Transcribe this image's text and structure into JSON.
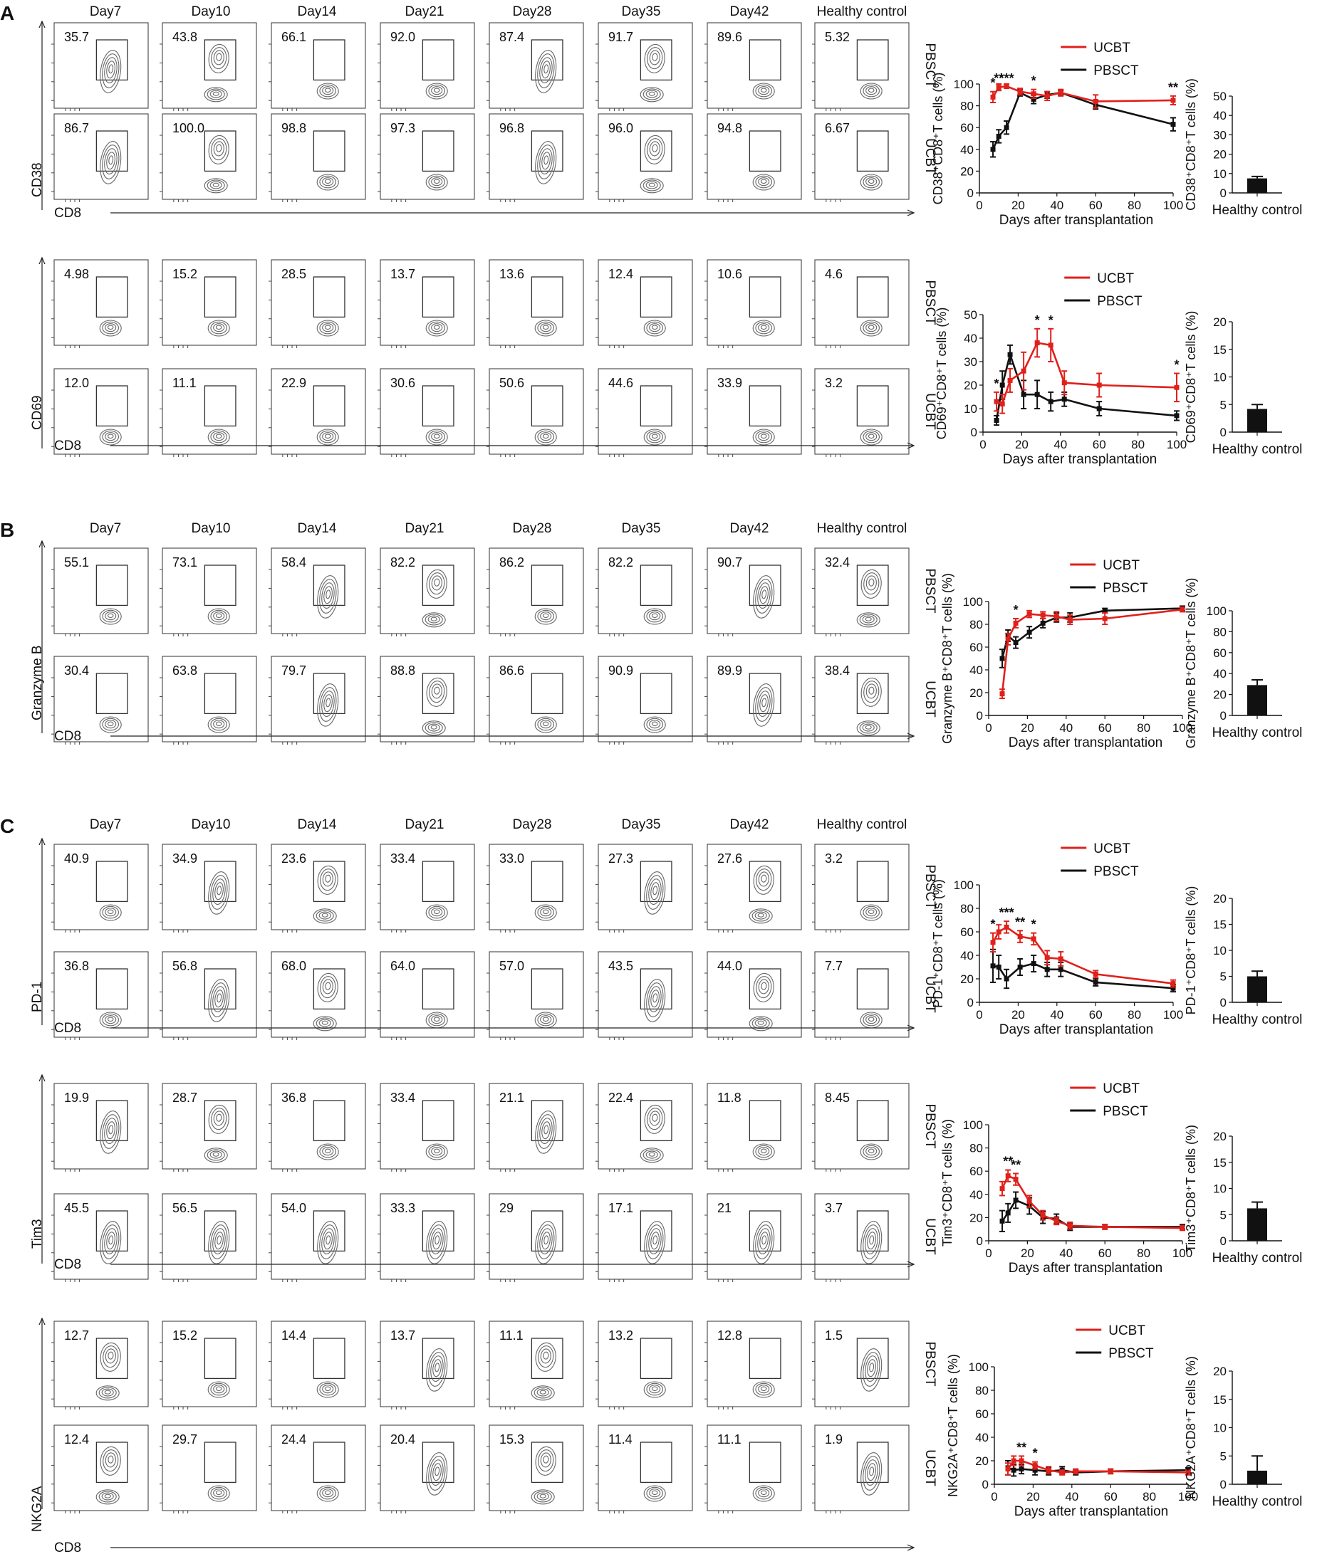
{
  "figure": {
    "panel_letters": [
      "A",
      "B",
      "C"
    ],
    "day_labels": [
      "Day7",
      "Day10",
      "Day14",
      "Day21",
      "Day28",
      "Day35",
      "Day42",
      "Healthy control"
    ],
    "group_labels": {
      "pbsct": "PBSCT",
      "ucbt": "UCBT"
    },
    "x_marker": "CD8",
    "legend": {
      "ucbt": "UCBT",
      "pbsct": "PBSCT"
    },
    "line_xlabel": "Days after transplantation",
    "bar_xlabel": "Healthy control",
    "colors": {
      "ucbt": "#e0201b",
      "pbsct": "#111111",
      "contour": "#666666",
      "bar": "#111111"
    },
    "panels": [
      {
        "letter": "A",
        "show_day_headers": true,
        "markers": [
          {
            "marker": "CD38",
            "pbsct_values": [
              "35.7",
              "43.8",
              "66.1",
              "92.0",
              "87.4",
              "91.7",
              "89.6",
              "5.32"
            ],
            "ucbt_values": [
              "86.7",
              "100.0",
              "98.8",
              "97.3",
              "96.8",
              "96.0",
              "94.8",
              "6.67"
            ],
            "line_ylabel": "CD38⁺CD8⁺T cells (%)",
            "bar_ylabel": "CD38⁺CD8⁺T cells (%)"
          },
          {
            "marker": "CD69",
            "pbsct_values": [
              "4.98",
              "15.2",
              "28.5",
              "13.7",
              "13.6",
              "12.4",
              "10.6",
              "4.6"
            ],
            "ucbt_values": [
              "12.0",
              "11.1",
              "22.9",
              "30.6",
              "50.6",
              "44.6",
              "33.9",
              "3.2"
            ],
            "line_ylabel": "CD69⁺CD8⁺T cells (%)",
            "bar_ylabel": "CD69⁺CD8⁺T cells (%)"
          }
        ]
      },
      {
        "letter": "B",
        "show_day_headers": true,
        "markers": [
          {
            "marker": "Granzyme B",
            "pbsct_values": [
              "55.1",
              "73.1",
              "58.4",
              "82.2",
              "86.2",
              "82.2",
              "90.7",
              "32.4"
            ],
            "ucbt_values": [
              "30.4",
              "63.8",
              "79.7",
              "88.8",
              "86.6",
              "90.9",
              "89.9",
              "38.4"
            ],
            "line_ylabel": "Granzyme B⁺CD8⁺T cells (%)",
            "bar_ylabel": "Granzyme B⁺CD8⁺T cells (%)"
          }
        ]
      },
      {
        "letter": "C",
        "show_day_headers": true,
        "markers": [
          {
            "marker": "PD-1",
            "pbsct_values": [
              "40.9",
              "34.9",
              "23.6",
              "33.4",
              "33.0",
              "27.3",
              "27.6",
              "3.2"
            ],
            "ucbt_values": [
              "36.8",
              "56.8",
              "68.0",
              "64.0",
              "57.0",
              "43.5",
              "44.0",
              "7.7"
            ],
            "line_ylabel": "PD-1⁺CD8⁺T cells (%)",
            "bar_ylabel": "PD-1⁺CD8⁺T cells (%)"
          },
          {
            "marker": "Tim3",
            "pbsct_values": [
              "19.9",
              "28.7",
              "36.8",
              "33.4",
              "21.1",
              "22.4",
              "11.8",
              "8.45"
            ],
            "ucbt_values": [
              "45.5",
              "56.5",
              "54.0",
              "33.3",
              "29",
              "17.1",
              "21",
              "3.7"
            ],
            "line_ylabel": "Tim3⁺CD8⁺T cells (%)",
            "bar_ylabel": "Tim3⁺CD8⁺T cells (%)"
          },
          {
            "marker": "NKG2A",
            "pbsct_values": [
              "12.7",
              "15.2",
              "14.4",
              "13.7",
              "11.1",
              "13.2",
              "12.8",
              "1.5"
            ],
            "ucbt_values": [
              "12.4",
              "29.7",
              "24.4",
              "20.4",
              "15.3",
              "11.4",
              "11.1",
              "1.9"
            ],
            "line_ylabel": "NKG2A⁺CD8⁺T cells (%)",
            "bar_ylabel": "NKG2A⁺CD8⁺T cells (%)"
          }
        ]
      }
    ]
  },
  "chart_data": [
    {
      "type": "line",
      "xlabel": "Days after transplantation",
      "ylabel": "CD38⁺CD8⁺T cells (%)",
      "xlim": [
        0,
        100
      ],
      "ylim": [
        0,
        100
      ],
      "xticks": [
        0,
        20,
        40,
        60,
        80,
        100
      ],
      "yticks": [
        0,
        20,
        40,
        60,
        80,
        100
      ],
      "x": [
        7,
        10,
        14,
        21,
        28,
        35,
        42,
        60,
        100
      ],
      "series": [
        {
          "name": "UCBT",
          "color": "#e0201b",
          "values": [
            88,
            97,
            98,
            93,
            91,
            89,
            92,
            84,
            85
          ],
          "errors": [
            5,
            3,
            2,
            3,
            4,
            4,
            3,
            6,
            4
          ]
        },
        {
          "name": "PBSCT",
          "color": "#111111",
          "values": [
            40,
            52,
            60,
            92,
            86,
            90,
            92,
            81,
            63
          ],
          "errors": [
            7,
            6,
            6,
            3,
            4,
            3,
            2,
            4,
            6
          ]
        }
      ],
      "significance": [
        {
          "x": 7,
          "label": "*"
        },
        {
          "x": 10,
          "label": "**"
        },
        {
          "x": 14,
          "label": "***"
        },
        {
          "x": 28,
          "label": "*"
        },
        {
          "x": 100,
          "label": "**"
        }
      ],
      "legend": "top-right"
    },
    {
      "type": "bar",
      "xlabel": "Healthy control",
      "ylabel": "CD38⁺CD8⁺T cells (%)",
      "ylim": [
        0,
        50
      ],
      "yticks": [
        0,
        10,
        20,
        30,
        40,
        50
      ],
      "categories": [
        "Healthy control"
      ],
      "values": [
        7.5
      ],
      "errors": [
        1
      ]
    },
    {
      "type": "line",
      "xlabel": "Days after transplantation",
      "ylabel": "CD69⁺CD8⁺T cells (%)",
      "xlim": [
        0,
        100
      ],
      "ylim": [
        0,
        50
      ],
      "xticks": [
        0,
        20,
        40,
        60,
        80,
        100
      ],
      "yticks": [
        0,
        10,
        20,
        30,
        40,
        50
      ],
      "x": [
        7,
        10,
        14,
        21,
        28,
        35,
        42,
        60,
        100
      ],
      "series": [
        {
          "name": "UCBT",
          "color": "#e0201b",
          "values": [
            13,
            12,
            22,
            26,
            38,
            37,
            21,
            20,
            19
          ],
          "errors": [
            4,
            4,
            5,
            8,
            6,
            7,
            5,
            5,
            6
          ]
        },
        {
          "name": "PBSCT",
          "color": "#111111",
          "values": [
            5,
            20,
            33,
            16,
            16,
            13,
            14,
            10,
            7
          ],
          "errors": [
            2,
            6,
            4,
            6,
            6,
            4,
            3,
            3,
            2
          ]
        }
      ],
      "significance": [
        {
          "x": 7,
          "label": "*"
        },
        {
          "x": 28,
          "label": "*"
        },
        {
          "x": 35,
          "label": "*"
        },
        {
          "x": 100,
          "label": "*"
        }
      ],
      "legend": "top-right"
    },
    {
      "type": "bar",
      "xlabel": "Healthy control",
      "ylabel": "CD69⁺CD8⁺T cells (%)",
      "ylim": [
        0,
        20
      ],
      "yticks": [
        0,
        5,
        10,
        15,
        20
      ],
      "categories": [
        "Healthy control"
      ],
      "values": [
        4.2
      ],
      "errors": [
        0.8
      ]
    },
    {
      "type": "line",
      "xlabel": "Days after transplantation",
      "ylabel": "Granzyme B⁺CD8⁺T cells (%)",
      "xlim": [
        0,
        100
      ],
      "ylim": [
        0,
        100
      ],
      "xticks": [
        0,
        20,
        40,
        60,
        80,
        100
      ],
      "yticks": [
        0,
        20,
        40,
        60,
        80,
        100
      ],
      "x": [
        7,
        10,
        14,
        21,
        28,
        35,
        42,
        60,
        100
      ],
      "series": [
        {
          "name": "UCBT",
          "color": "#e0201b",
          "values": [
            19,
            67,
            81,
            89,
            88,
            87,
            84,
            85,
            93
          ],
          "errors": [
            4,
            5,
            4,
            3,
            3,
            4,
            4,
            5,
            2
          ]
        },
        {
          "name": "PBSCT",
          "color": "#111111",
          "values": [
            50,
            70,
            64,
            73,
            81,
            86,
            86,
            92,
            94
          ],
          "errors": [
            8,
            5,
            5,
            5,
            4,
            4,
            4,
            2,
            2
          ]
        }
      ],
      "significance": [
        {
          "x": 14,
          "label": "*"
        }
      ],
      "legend": "top-right"
    },
    {
      "type": "bar",
      "xlabel": "Healthy control",
      "ylabel": "Granzyme B⁺CD8⁺T cells (%)",
      "ylim": [
        0,
        100
      ],
      "yticks": [
        0,
        20,
        40,
        60,
        80,
        100
      ],
      "categories": [
        "Healthy control"
      ],
      "values": [
        29
      ],
      "errors": [
        5
      ]
    },
    {
      "type": "line",
      "xlabel": "Days after transplantation",
      "ylabel": "PD-1⁺CD8⁺T cells (%)",
      "xlim": [
        0,
        100
      ],
      "ylim": [
        0,
        100
      ],
      "xticks": [
        0,
        20,
        40,
        60,
        80,
        100
      ],
      "yticks": [
        0,
        20,
        40,
        60,
        80,
        100
      ],
      "x": [
        7,
        10,
        14,
        21,
        28,
        35,
        42,
        60,
        100
      ],
      "series": [
        {
          "name": "UCBT",
          "color": "#e0201b",
          "values": [
            51,
            60,
            64,
            56,
            54,
            38,
            37,
            24,
            16
          ],
          "errors": [
            8,
            6,
            5,
            5,
            5,
            6,
            6,
            3,
            3
          ]
        },
        {
          "name": "PBSCT",
          "color": "#111111",
          "values": [
            31,
            30,
            20,
            30,
            33,
            28,
            28,
            17,
            12
          ],
          "errors": [
            14,
            10,
            8,
            7,
            7,
            6,
            6,
            3,
            3
          ]
        }
      ],
      "significance": [
        {
          "x": 7,
          "label": "*"
        },
        {
          "x": 14,
          "label": "***"
        },
        {
          "x": 21,
          "label": "**"
        },
        {
          "x": 28,
          "label": "*"
        }
      ],
      "legend": "top-right"
    },
    {
      "type": "bar",
      "xlabel": "Healthy control",
      "ylabel": "PD-1⁺CD8⁺T cells (%)",
      "ylim": [
        0,
        20
      ],
      "yticks": [
        0,
        5,
        10,
        15,
        20
      ],
      "categories": [
        "Healthy control"
      ],
      "values": [
        5
      ],
      "errors": [
        1
      ]
    },
    {
      "type": "line",
      "xlabel": "Days after transplantation",
      "ylabel": "Tim3⁺CD8⁺T cells (%)",
      "xlim": [
        0,
        100
      ],
      "ylim": [
        0,
        100
      ],
      "xticks": [
        0,
        20,
        40,
        60,
        80,
        100
      ],
      "yticks": [
        0,
        20,
        40,
        60,
        80,
        100
      ],
      "x": [
        7,
        10,
        14,
        21,
        28,
        35,
        42,
        60,
        100
      ],
      "series": [
        {
          "name": "UCBT",
          "color": "#e0201b",
          "values": [
            45,
            56,
            53,
            34,
            22,
            17,
            13,
            12,
            11
          ],
          "errors": [
            6,
            5,
            5,
            5,
            4,
            3,
            3,
            2,
            2
          ]
        },
        {
          "name": "PBSCT",
          "color": "#111111",
          "values": [
            17,
            24,
            35,
            30,
            20,
            19,
            12,
            12,
            12
          ],
          "errors": [
            9,
            8,
            7,
            7,
            5,
            4,
            3,
            2,
            2
          ]
        }
      ],
      "significance": [
        {
          "x": 10,
          "label": "**"
        },
        {
          "x": 14,
          "label": "**"
        }
      ],
      "legend": "top-right"
    },
    {
      "type": "bar",
      "xlabel": "Healthy control",
      "ylabel": "Tim3⁺CD8⁺T cells (%)",
      "ylim": [
        0,
        20
      ],
      "yticks": [
        0,
        5,
        10,
        15,
        20
      ],
      "categories": [
        "Healthy control"
      ],
      "values": [
        6.2
      ],
      "errors": [
        1.2
      ]
    },
    {
      "type": "line",
      "xlabel": "Days after transplantation",
      "ylabel": "NKG2A⁺CD8⁺T cells (%)",
      "xlim": [
        0,
        100
      ],
      "ylim": [
        0,
        100
      ],
      "xticks": [
        0,
        20,
        40,
        60,
        80,
        100
      ],
      "yticks": [
        0,
        20,
        40,
        60,
        80,
        100
      ],
      "x": [
        7,
        10,
        14,
        21,
        28,
        35,
        42,
        60,
        100
      ],
      "series": [
        {
          "name": "UCBT",
          "color": "#e0201b",
          "values": [
            13,
            20,
            20,
            16,
            12,
            10,
            11,
            11,
            10
          ],
          "errors": [
            5,
            4,
            4,
            3,
            3,
            2,
            2,
            2,
            2
          ]
        },
        {
          "name": "PBSCT",
          "color": "#111111",
          "values": [
            14,
            12,
            13,
            12,
            11,
            12,
            10,
            11,
            12
          ],
          "errors": [
            6,
            5,
            4,
            4,
            3,
            3,
            2,
            2,
            2
          ]
        }
      ],
      "significance": [
        {
          "x": 14,
          "label": "**"
        },
        {
          "x": 21,
          "label": "*"
        }
      ],
      "legend": "top-right"
    },
    {
      "type": "bar",
      "xlabel": "Healthy control",
      "ylabel": "NKG2A⁺CD8⁺T cells (%)",
      "ylim": [
        0,
        20
      ],
      "yticks": [
        0,
        5,
        10,
        15,
        20
      ],
      "categories": [
        "Healthy control"
      ],
      "values": [
        2.4
      ],
      "errors": [
        2.6
      ]
    }
  ]
}
